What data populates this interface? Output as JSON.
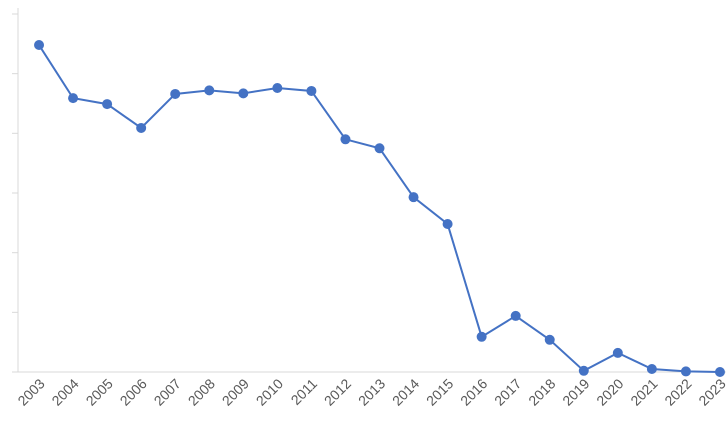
{
  "chart_data": {
    "type": "line",
    "categories": [
      "2003",
      "2004",
      "2005",
      "2006",
      "2007",
      "2008",
      "2009",
      "2010",
      "2011",
      "2012",
      "2013",
      "2014",
      "2015",
      "2016",
      "2017",
      "2018",
      "2019",
      "2020",
      "2021",
      "2022",
      "2023"
    ],
    "values": [
      5.48,
      4.59,
      4.49,
      4.09,
      4.66,
      4.72,
      4.67,
      4.76,
      4.71,
      3.9,
      3.75,
      2.93,
      2.48,
      0.59,
      0.94,
      0.54,
      0.02,
      0.32,
      0.05,
      0.01,
      0.0
    ],
    "color": "#4472c4",
    "ylim": [
      0,
      6
    ],
    "yticks": [
      0,
      1,
      2,
      3,
      4,
      5,
      6
    ]
  }
}
